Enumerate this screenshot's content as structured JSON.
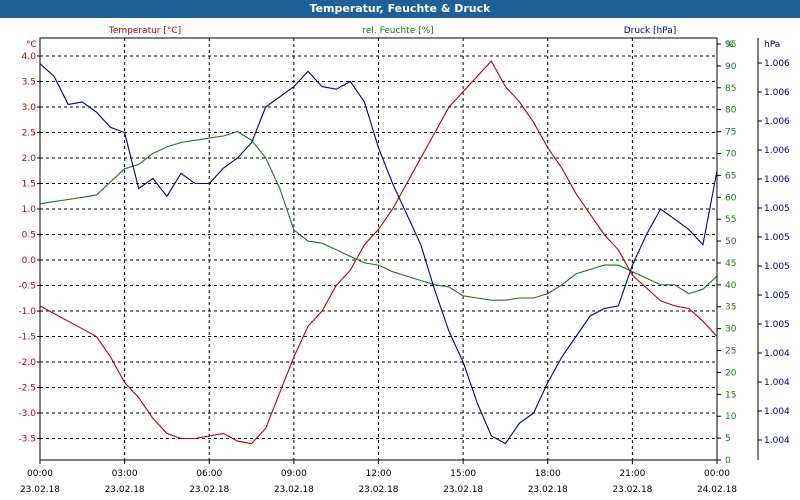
{
  "window": {
    "title": "Temperatur, Feuchte & Druck"
  },
  "chart_data": {
    "type": "line",
    "title": "Temperatur, Feuchte & Druck",
    "grid": true,
    "x_ticks": [
      {
        "time": "00:00",
        "date": "23.02.18"
      },
      {
        "time": "03:00",
        "date": "23.02.18"
      },
      {
        "time": "06:00",
        "date": "23.02.18"
      },
      {
        "time": "09:00",
        "date": "23.02.18"
      },
      {
        "time": "12:00",
        "date": "23.02.18"
      },
      {
        "time": "15:00",
        "date": "23.02.18"
      },
      {
        "time": "18:00",
        "date": "23.02.18"
      },
      {
        "time": "21:00",
        "date": "23.02.18"
      },
      {
        "time": "00:00",
        "date": "24.02.18"
      }
    ],
    "x_range_hours": [
      0,
      24
    ],
    "axes": {
      "temperature": {
        "label": "Temperatur [°C]",
        "unit": "°C",
        "color": "#c00000",
        "range": [
          -4.0,
          4.0
        ],
        "ticks": [
          "4.0",
          "3.5",
          "3.0",
          "2.5",
          "2.0",
          "1.5",
          "1.0",
          "0.5",
          "0.0",
          "-0.5",
          "-1.0",
          "-1.5",
          "-2.0",
          "-2.5",
          "-3.0",
          "-3.5"
        ]
      },
      "humidity": {
        "label": "rel. Feuchte [%]",
        "unit": "%",
        "color": "#1a7a1a",
        "range": [
          0,
          95
        ],
        "ticks": [
          "95",
          "90",
          "85",
          "80",
          "75",
          "70",
          "65",
          "60",
          "55",
          "50",
          "45",
          "40",
          "35",
          "30",
          "25",
          "20",
          "15",
          "10",
          "5",
          "0"
        ]
      },
      "pressure": {
        "label": "Druck [hPa]",
        "unit": "hPa",
        "color": "#00008b",
        "ticks": [
          "1.006",
          "1.006",
          "1.006",
          "1.006",
          "1.006",
          "1.005",
          "1.005",
          "1.005",
          "1.005",
          "1.005",
          "1.004",
          "1.004",
          "1.004",
          "1.004"
        ]
      }
    },
    "series": [
      {
        "name": "Temperatur [°C]",
        "axis": "temperature",
        "color": "#c00000",
        "x": [
          0,
          0.5,
          1,
          1.5,
          2,
          2.5,
          3,
          3.5,
          4,
          4.5,
          5,
          5.5,
          6,
          6.5,
          7,
          7.5,
          8,
          8.5,
          9,
          9.5,
          10,
          10.5,
          11,
          11.5,
          12,
          12.5,
          13,
          13.5,
          14,
          14.5,
          15,
          15.5,
          16,
          16.5,
          17,
          17.5,
          18,
          18.5,
          19,
          19.5,
          20,
          20.5,
          21,
          21.5,
          22,
          22.5,
          23,
          23.5,
          24
        ],
        "values": [
          -0.9,
          -1.05,
          -1.2,
          -1.35,
          -1.5,
          -1.9,
          -2.4,
          -2.7,
          -3.1,
          -3.4,
          -3.5,
          -3.5,
          -3.45,
          -3.4,
          -3.55,
          -3.6,
          -3.3,
          -2.6,
          -1.9,
          -1.3,
          -1.0,
          -0.5,
          -0.2,
          0.3,
          0.6,
          1.0,
          1.5,
          2.0,
          2.5,
          3.0,
          3.3,
          3.6,
          3.9,
          3.4,
          3.1,
          2.7,
          2.2,
          1.8,
          1.3,
          0.9,
          0.5,
          0.2,
          -0.3,
          -0.55,
          -0.8,
          -0.9,
          -0.95,
          -1.2,
          -1.5
        ]
      },
      {
        "name": "rel. Feuchte [%]",
        "axis": "humidity",
        "color": "#1a7a1a",
        "x": [
          0,
          0.5,
          1,
          1.5,
          2,
          2.5,
          3,
          3.5,
          4,
          4.5,
          5,
          5.5,
          6,
          6.5,
          7,
          7.5,
          8,
          8.5,
          9,
          9.5,
          10,
          10.5,
          11,
          11.5,
          12,
          12.5,
          13,
          13.5,
          14,
          14.5,
          15,
          15.5,
          16,
          16.5,
          17,
          17.5,
          18,
          18.5,
          19,
          19.5,
          20,
          20.5,
          21,
          21.5,
          22,
          22.5,
          23,
          23.5,
          24
        ],
        "values": [
          58.5,
          59,
          59.5,
          60,
          60.5,
          63.5,
          66.5,
          67.5,
          70,
          71.5,
          72.5,
          73,
          73.5,
          74,
          75,
          73,
          69,
          62,
          52.5,
          50,
          49.5,
          48,
          46.5,
          45,
          44.5,
          43,
          42,
          41,
          40,
          39.5,
          37.5,
          37,
          36.5,
          36.5,
          37,
          37,
          38,
          40,
          42.5,
          43.5,
          44.5,
          44.5,
          43,
          41.5,
          40,
          40,
          38,
          39,
          42
        ]
      },
      {
        "name": "Druck [hPa]",
        "axis": "pressure",
        "color": "#00008b",
        "x": [
          0,
          0.5,
          1,
          1.5,
          2,
          2.5,
          3,
          3.5,
          4,
          4.5,
          5,
          5.5,
          6,
          6.5,
          7,
          7.5,
          8,
          8.5,
          9,
          9.5,
          10,
          10.5,
          11,
          11.5,
          12,
          12.5,
          13,
          13.5,
          14,
          14.5,
          15,
          15.5,
          16,
          16.5,
          17,
          17.5,
          18,
          18.5,
          19,
          19.5,
          20,
          20.5,
          21,
          21.5,
          22,
          22.5,
          23,
          23.5,
          24
        ],
        "values": [
          3.85,
          3.6,
          3.05,
          3.1,
          2.9,
          2.6,
          2.5,
          1.4,
          1.6,
          1.25,
          1.7,
          1.5,
          1.5,
          1.8,
          2.0,
          2.3,
          3.0,
          3.2,
          3.4,
          3.7,
          3.4,
          3.35,
          3.5,
          3.1,
          2.2,
          1.5,
          0.9,
          0.3,
          -0.6,
          -1.4,
          -2.0,
          -2.8,
          -3.45,
          -3.6,
          -3.2,
          -3.0,
          -2.4,
          -1.9,
          -1.5,
          -1.1,
          -0.95,
          -0.9,
          -0.1,
          0.5,
          1.0,
          0.8,
          0.6,
          0.3,
          1.75
        ]
      }
    ]
  }
}
